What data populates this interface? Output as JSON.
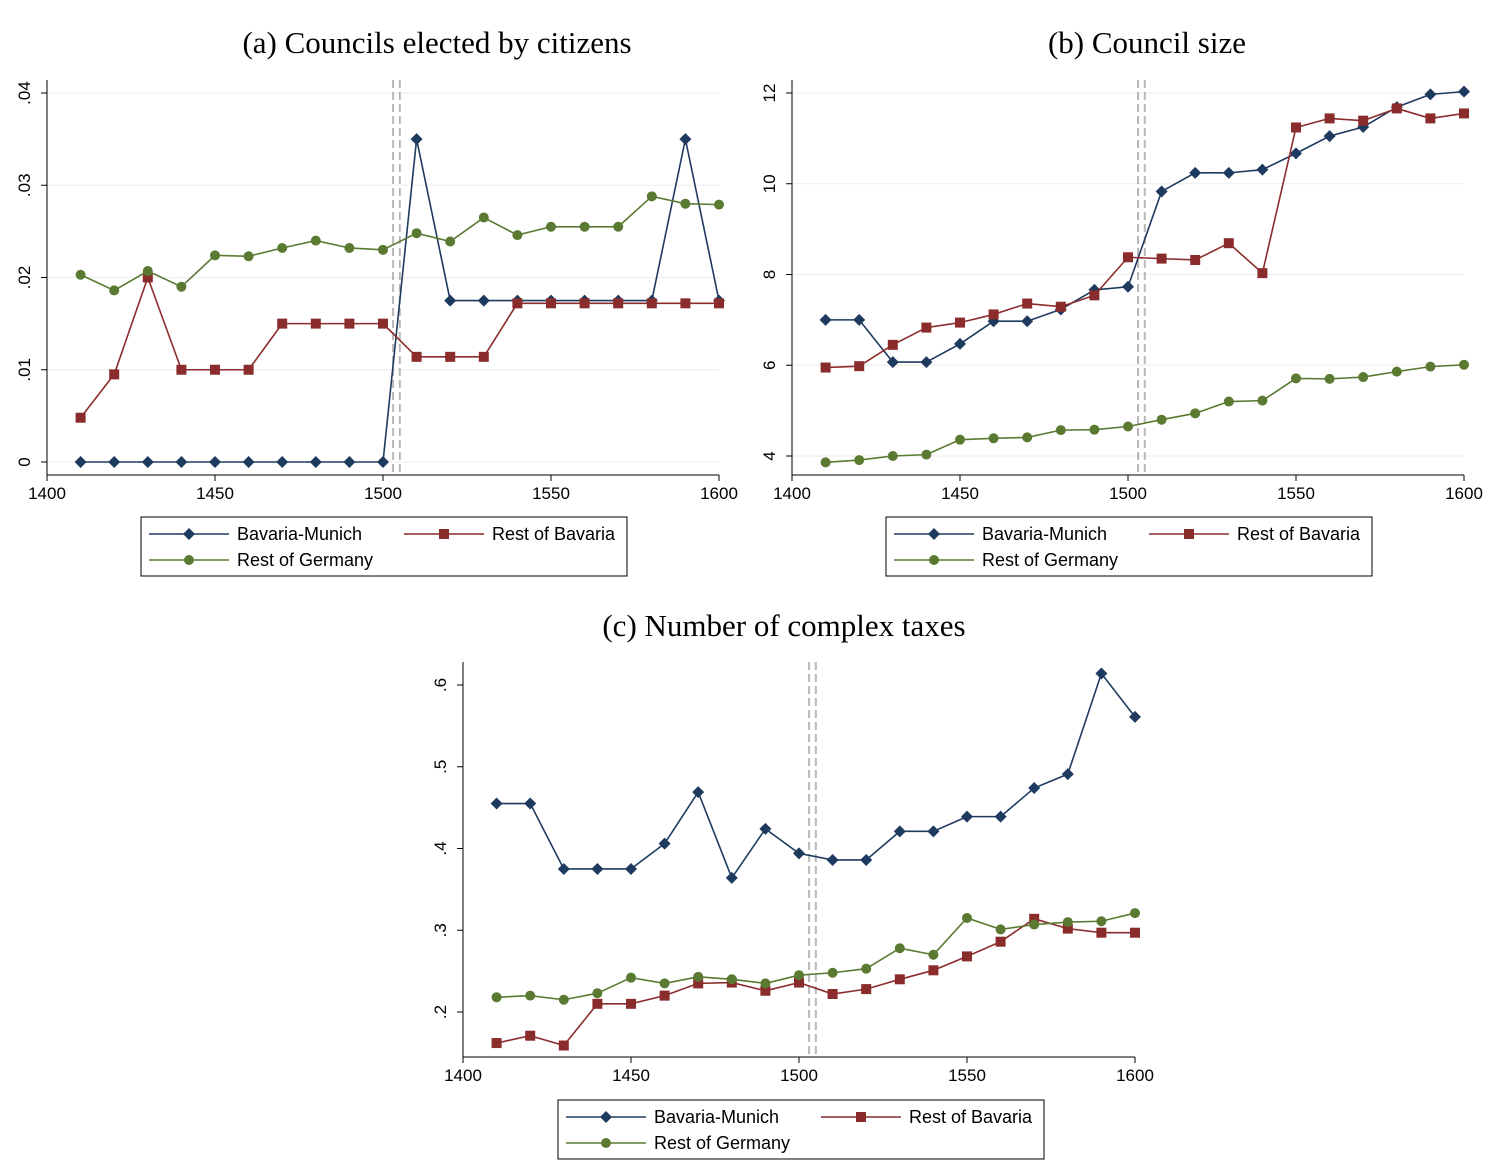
{
  "chart_data": [
    {
      "type": "line",
      "title": "(a) Councils elected by citizens",
      "xlabel": "",
      "ylabel": "",
      "xlim": [
        1400,
        1600
      ],
      "ylim": [
        0,
        0.04
      ],
      "x_ticks": [
        1400,
        1450,
        1500,
        1550,
        1600
      ],
      "x_tick_labels": [
        "1400",
        "1450",
        "1500",
        "1550",
        "1600"
      ],
      "y_ticks": [
        0,
        0.01,
        0.02,
        0.03,
        0.04
      ],
      "y_tick_labels": [
        "0",
        ".01",
        ".02",
        ".03",
        ".04"
      ],
      "reference_lines": [
        1503,
        1505
      ],
      "grid": true,
      "legend_position": "bottom",
      "x": [
        1410,
        1420,
        1430,
        1440,
        1450,
        1460,
        1470,
        1480,
        1490,
        1500,
        1510,
        1520,
        1530,
        1540,
        1550,
        1560,
        1570,
        1580,
        1590,
        1600
      ],
      "series": [
        {
          "name": "Bavaria-Munich",
          "color": "#1f3a5f",
          "marker": "diamond",
          "values": [
            0,
            0,
            0,
            0,
            0,
            0,
            0,
            0,
            0,
            0,
            0.035,
            0.0175,
            0.0175,
            0.0175,
            0.0175,
            0.0175,
            0.0175,
            0.0175,
            0.035,
            0.0175
          ]
        },
        {
          "name": "Rest of Bavaria",
          "color": "#8b2c2c",
          "marker": "square",
          "values": [
            0.0048,
            0.0095,
            0.02,
            0.01,
            0.01,
            0.01,
            0.015,
            0.015,
            0.015,
            0.015,
            0.0114,
            0.0114,
            0.0114,
            0.0172,
            0.0172,
            0.0172,
            0.0172,
            0.0172,
            0.0172,
            0.0172
          ]
        },
        {
          "name": "Rest of Germany",
          "color": "#5a7a32",
          "marker": "circle",
          "values": [
            0.0203,
            0.0186,
            0.0207,
            0.019,
            0.0224,
            0.0223,
            0.0232,
            0.024,
            0.0232,
            0.023,
            0.0248,
            0.0239,
            0.0265,
            0.0246,
            0.0255,
            0.0255,
            0.0255,
            0.0288,
            0.028,
            0.0279
          ]
        }
      ]
    },
    {
      "type": "line",
      "title": "(b) Council size",
      "xlabel": "",
      "ylabel": "",
      "xlim": [
        1400,
        1600
      ],
      "ylim": [
        4,
        12
      ],
      "x_ticks": [
        1400,
        1450,
        1500,
        1550,
        1600
      ],
      "x_tick_labels": [
        "1400",
        "1450",
        "1500",
        "1550",
        "1600"
      ],
      "y_ticks": [
        4,
        6,
        8,
        10,
        12
      ],
      "y_tick_labels": [
        "4",
        "6",
        "8",
        "10",
        "12"
      ],
      "reference_lines": [
        1503,
        1505
      ],
      "grid": true,
      "legend_position": "bottom",
      "x": [
        1410,
        1420,
        1430,
        1440,
        1450,
        1460,
        1470,
        1480,
        1490,
        1500,
        1510,
        1520,
        1530,
        1540,
        1550,
        1560,
        1570,
        1580,
        1590,
        1600
      ],
      "series": [
        {
          "name": "Bavaria-Munich",
          "color": "#1f3a5f",
          "marker": "diamond",
          "values": [
            7.0,
            7.0,
            6.07,
            6.07,
            6.47,
            6.97,
            6.97,
            7.23,
            7.66,
            7.73,
            9.83,
            10.24,
            10.24,
            10.31,
            10.67,
            11.05,
            11.25,
            11.69,
            11.97,
            12.03
          ]
        },
        {
          "name": "Rest of Bavaria",
          "color": "#8b2c2c",
          "marker": "square",
          "values": [
            5.95,
            5.98,
            6.45,
            6.83,
            6.94,
            7.12,
            7.36,
            7.29,
            7.54,
            8.38,
            8.35,
            8.32,
            8.69,
            8.03,
            11.24,
            11.44,
            11.39,
            11.66,
            11.44,
            11.55
          ]
        },
        {
          "name": "Rest of Germany",
          "color": "#5a7a32",
          "marker": "circle",
          "values": [
            3.86,
            3.91,
            4.0,
            4.03,
            4.36,
            4.39,
            4.41,
            4.57,
            4.58,
            4.65,
            4.8,
            4.94,
            5.2,
            5.22,
            5.71,
            5.7,
            5.74,
            5.86,
            5.97,
            6.01
          ]
        }
      ]
    },
    {
      "type": "line",
      "title": "(c) Number of complex taxes",
      "xlabel": "",
      "ylabel": "",
      "xlim": [
        1400,
        1600
      ],
      "ylim": [
        0.16,
        0.62
      ],
      "x_ticks": [
        1400,
        1450,
        1500,
        1550,
        1600
      ],
      "x_tick_labels": [
        "1400",
        "1450",
        "1500",
        "1550",
        "1600"
      ],
      "y_ticks": [
        0.2,
        0.3,
        0.4,
        0.5,
        0.6
      ],
      "y_tick_labels": [
        ".2",
        ".3",
        ".4",
        ".5",
        ".6"
      ],
      "reference_lines": [
        1503,
        1505
      ],
      "grid": false,
      "legend_position": "bottom",
      "x": [
        1410,
        1420,
        1430,
        1440,
        1450,
        1460,
        1470,
        1480,
        1490,
        1500,
        1510,
        1520,
        1530,
        1540,
        1550,
        1560,
        1570,
        1580,
        1590,
        1600
      ],
      "series": [
        {
          "name": "Bavaria-Munich",
          "color": "#1f3a5f",
          "marker": "diamond",
          "values": [
            0.455,
            0.455,
            0.375,
            0.375,
            0.375,
            0.406,
            0.469,
            0.364,
            0.424,
            0.394,
            0.386,
            0.386,
            0.421,
            0.421,
            0.439,
            0.439,
            0.474,
            0.491,
            0.614,
            0.561
          ]
        },
        {
          "name": "Rest of Bavaria",
          "color": "#8b2c2c",
          "marker": "square",
          "values": [
            0.162,
            0.171,
            0.159,
            0.21,
            0.21,
            0.22,
            0.235,
            0.236,
            0.226,
            0.236,
            0.222,
            0.228,
            0.24,
            0.251,
            0.268,
            0.286,
            0.314,
            0.302,
            0.297,
            0.297
          ]
        },
        {
          "name": "Rest of Germany",
          "color": "#5a7a32",
          "marker": "circle",
          "values": [
            0.218,
            0.22,
            0.215,
            0.223,
            0.242,
            0.235,
            0.243,
            0.24,
            0.235,
            0.245,
            0.248,
            0.253,
            0.278,
            0.27,
            0.315,
            0.301,
            0.307,
            0.31,
            0.311,
            0.321
          ]
        }
      ]
    }
  ]
}
